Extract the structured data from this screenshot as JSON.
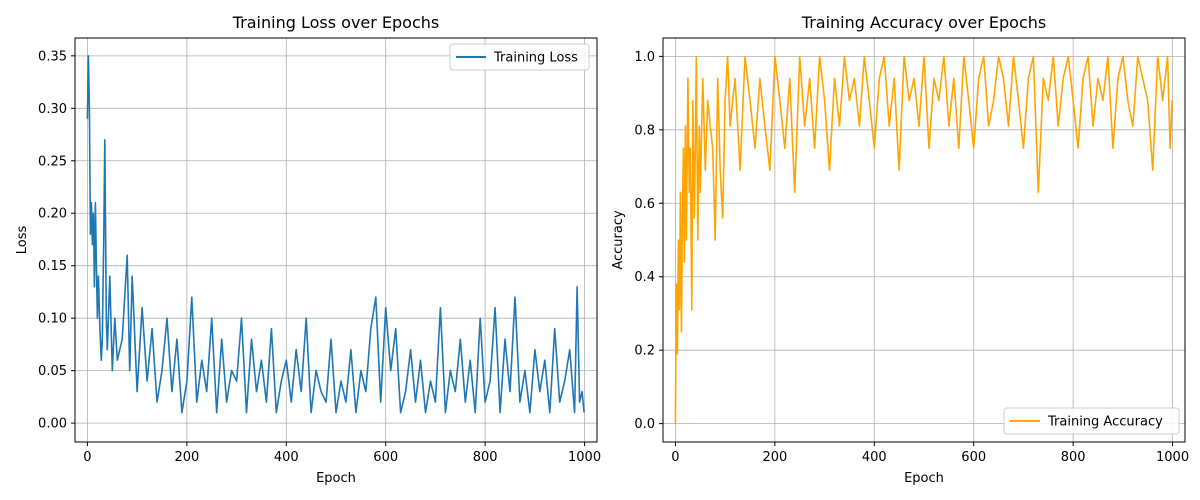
{
  "chart_data": [
    {
      "type": "line",
      "title": "Training Loss over Epochs",
      "xlabel": "Epoch",
      "ylabel": "Loss",
      "xlim": [
        -25,
        1025
      ],
      "ylim": [
        -0.018,
        0.367
      ],
      "xticks": [
        0,
        200,
        400,
        600,
        800,
        1000
      ],
      "yticks": [
        0.0,
        0.05,
        0.1,
        0.15,
        0.2,
        0.25,
        0.3,
        0.35
      ],
      "xtick_labels": [
        "0",
        "200",
        "400",
        "600",
        "800",
        "1000"
      ],
      "ytick_labels": [
        "0.00",
        "0.05",
        "0.10",
        "0.15",
        "0.20",
        "0.25",
        "0.30",
        "0.35"
      ],
      "grid": true,
      "legend_position": "upper right",
      "series": [
        {
          "name": "Training Loss",
          "color": "#1f77b4",
          "x": [
            0,
            2,
            4,
            6,
            8,
            10,
            12,
            14,
            16,
            18,
            20,
            22,
            25,
            28,
            30,
            33,
            35,
            38,
            40,
            45,
            50,
            55,
            60,
            70,
            80,
            85,
            90,
            100,
            110,
            120,
            130,
            140,
            150,
            160,
            170,
            180,
            190,
            200,
            210,
            220,
            230,
            240,
            250,
            260,
            270,
            280,
            290,
            300,
            310,
            320,
            330,
            340,
            350,
            360,
            370,
            380,
            390,
            400,
            410,
            420,
            430,
            440,
            450,
            460,
            470,
            480,
            490,
            500,
            510,
            520,
            530,
            540,
            550,
            560,
            570,
            580,
            590,
            600,
            610,
            620,
            630,
            640,
            650,
            660,
            670,
            680,
            690,
            700,
            710,
            720,
            730,
            740,
            750,
            760,
            770,
            780,
            790,
            800,
            810,
            820,
            830,
            840,
            850,
            860,
            870,
            880,
            890,
            900,
            910,
            920,
            930,
            940,
            950,
            960,
            970,
            980,
            985,
            990,
            995,
            999
          ],
          "y": [
            0.29,
            0.35,
            0.3,
            0.18,
            0.21,
            0.17,
            0.2,
            0.13,
            0.21,
            0.15,
            0.1,
            0.14,
            0.09,
            0.06,
            0.08,
            0.18,
            0.27,
            0.1,
            0.07,
            0.14,
            0.05,
            0.1,
            0.06,
            0.08,
            0.16,
            0.05,
            0.14,
            0.03,
            0.11,
            0.04,
            0.09,
            0.02,
            0.05,
            0.1,
            0.03,
            0.08,
            0.01,
            0.04,
            0.12,
            0.02,
            0.06,
            0.03,
            0.1,
            0.01,
            0.08,
            0.02,
            0.05,
            0.04,
            0.1,
            0.01,
            0.08,
            0.03,
            0.06,
            0.02,
            0.09,
            0.01,
            0.04,
            0.06,
            0.02,
            0.07,
            0.03,
            0.1,
            0.01,
            0.05,
            0.03,
            0.02,
            0.08,
            0.01,
            0.04,
            0.02,
            0.07,
            0.01,
            0.05,
            0.03,
            0.09,
            0.12,
            0.02,
            0.11,
            0.05,
            0.09,
            0.01,
            0.03,
            0.07,
            0.02,
            0.06,
            0.01,
            0.04,
            0.02,
            0.11,
            0.01,
            0.05,
            0.03,
            0.08,
            0.02,
            0.06,
            0.01,
            0.1,
            0.02,
            0.04,
            0.11,
            0.01,
            0.08,
            0.03,
            0.12,
            0.02,
            0.05,
            0.01,
            0.07,
            0.03,
            0.06,
            0.01,
            0.09,
            0.02,
            0.04,
            0.07,
            0.01,
            0.13,
            0.02,
            0.03,
            0.01
          ]
        }
      ]
    },
    {
      "type": "line",
      "title": "Training Accuracy over Epochs",
      "xlabel": "Epoch",
      "ylabel": "Accuracy",
      "xlim": [
        -25,
        1025
      ],
      "ylim": [
        -0.05,
        1.05
      ],
      "xticks": [
        0,
        200,
        400,
        600,
        800,
        1000
      ],
      "yticks": [
        0.0,
        0.2,
        0.4,
        0.6,
        0.8,
        1.0
      ],
      "xtick_labels": [
        "0",
        "200",
        "400",
        "600",
        "800",
        "1000"
      ],
      "ytick_labels": [
        "0.0",
        "0.2",
        "0.4",
        "0.6",
        "0.8",
        "1.0"
      ],
      "grid": true,
      "legend_position": "lower right",
      "series": [
        {
          "name": "Training Accuracy",
          "color": "#ffa500",
          "x": [
            0,
            2,
            4,
            6,
            8,
            10,
            12,
            14,
            16,
            18,
            20,
            22,
            25,
            28,
            30,
            33,
            35,
            38,
            40,
            42,
            45,
            48,
            50,
            55,
            60,
            65,
            70,
            75,
            80,
            85,
            90,
            95,
            100,
            105,
            110,
            120,
            130,
            140,
            150,
            160,
            170,
            180,
            190,
            200,
            210,
            220,
            230,
            240,
            250,
            260,
            270,
            280,
            290,
            300,
            310,
            320,
            330,
            340,
            350,
            360,
            370,
            380,
            390,
            400,
            410,
            420,
            430,
            440,
            450,
            460,
            470,
            480,
            490,
            500,
            510,
            520,
            530,
            540,
            550,
            560,
            570,
            580,
            590,
            600,
            610,
            620,
            630,
            640,
            650,
            660,
            670,
            680,
            690,
            700,
            710,
            720,
            730,
            740,
            750,
            760,
            770,
            780,
            790,
            800,
            810,
            820,
            830,
            840,
            850,
            860,
            870,
            880,
            890,
            900,
            910,
            920,
            930,
            940,
            950,
            960,
            970,
            980,
            985,
            990,
            995,
            999
          ],
          "y": [
            0.0,
            0.38,
            0.19,
            0.5,
            0.31,
            0.63,
            0.25,
            0.56,
            0.75,
            0.44,
            0.81,
            0.5,
            0.94,
            0.63,
            0.75,
            0.31,
            0.88,
            0.56,
            0.75,
            1.0,
            0.5,
            0.81,
            0.63,
            0.94,
            0.69,
            0.88,
            0.81,
            0.75,
            0.5,
            0.94,
            0.69,
            0.56,
            0.88,
            1.0,
            0.81,
            0.94,
            0.69,
            1.0,
            0.88,
            0.75,
            0.94,
            0.81,
            0.69,
            1.0,
            0.88,
            0.75,
            0.94,
            0.63,
            1.0,
            0.81,
            0.94,
            0.75,
            1.0,
            0.88,
            0.69,
            0.94,
            0.81,
            1.0,
            0.88,
            0.94,
            0.81,
            1.0,
            0.88,
            0.75,
            0.94,
            1.0,
            0.81,
            0.94,
            0.69,
            1.0,
            0.88,
            0.94,
            0.81,
            1.0,
            0.75,
            0.94,
            0.88,
            1.0,
            0.81,
            0.94,
            0.75,
            1.0,
            0.88,
            0.75,
            0.94,
            1.0,
            0.81,
            0.88,
            1.0,
            0.94,
            0.81,
            1.0,
            0.88,
            0.75,
            0.94,
            1.0,
            0.63,
            0.94,
            0.88,
            1.0,
            0.81,
            0.94,
            1.0,
            0.88,
            0.75,
            0.94,
            1.0,
            0.81,
            0.94,
            0.88,
            1.0,
            0.75,
            0.94,
            1.0,
            0.88,
            0.81,
            1.0,
            0.94,
            0.88,
            0.69,
            1.0,
            0.88,
            0.94,
            1.0,
            0.75,
            0.88
          ]
        }
      ]
    }
  ]
}
